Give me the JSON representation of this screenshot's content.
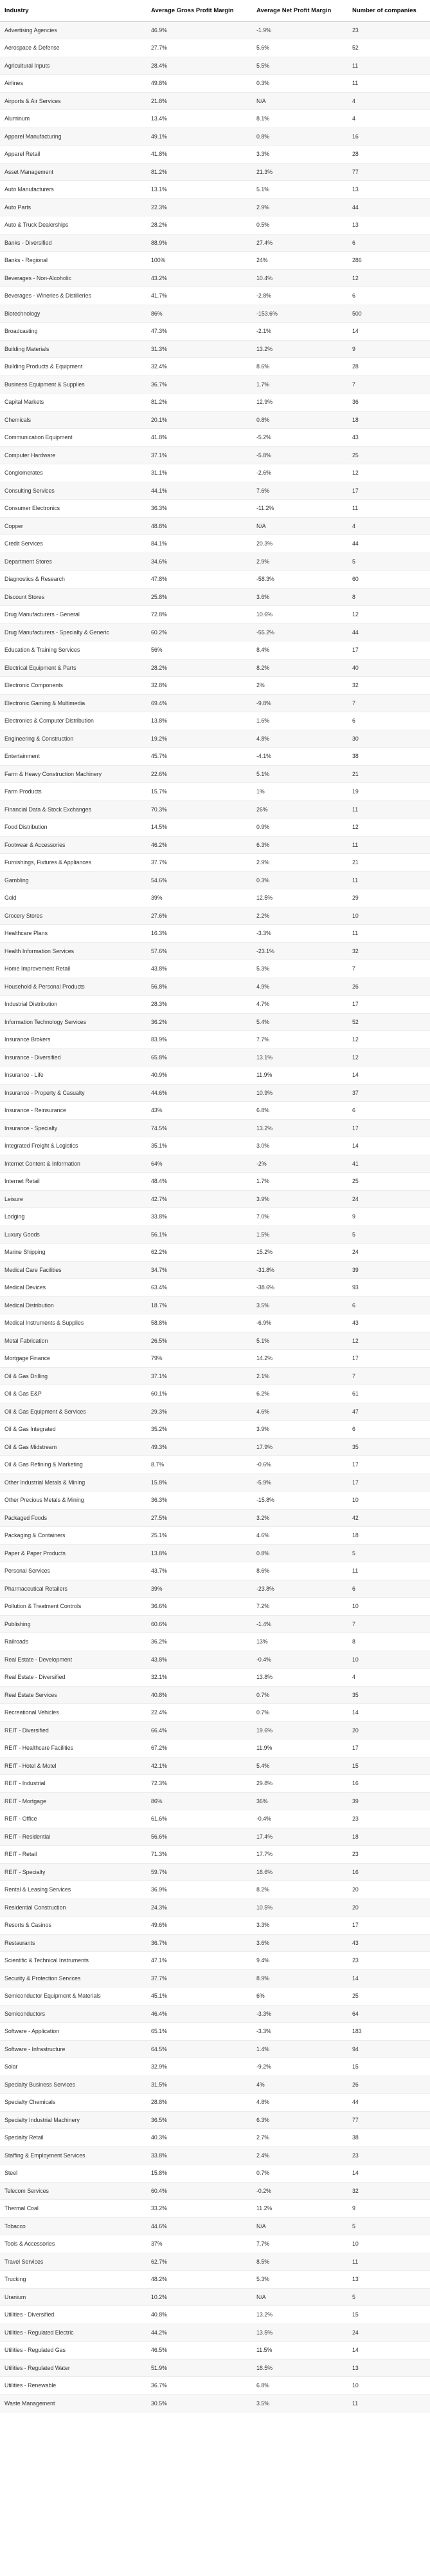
{
  "table": {
    "headers": [
      "Industry",
      "Average Gross Profit Margin",
      "Average Net Profit Margin",
      "Number of companies"
    ],
    "rows": [
      [
        "Advertising Agencies",
        "46.9%",
        "-1.9%",
        "23"
      ],
      [
        "Aerospace & Defense",
        "27.7%",
        "5.6%",
        "52"
      ],
      [
        "Agricultural Inputs",
        "28.4%",
        "5.5%",
        "11"
      ],
      [
        "Airlines",
        "49.8%",
        "0.3%",
        "11"
      ],
      [
        "Airports & Air Services",
        "21.8%",
        "N/A",
        "4"
      ],
      [
        "Aluminum",
        "13.4%",
        "8.1%",
        "4"
      ],
      [
        "Apparel Manufacturing",
        "49.1%",
        "0.8%",
        "16"
      ],
      [
        "Apparel Retail",
        "41.8%",
        "3.3%",
        "28"
      ],
      [
        "Asset Management",
        "81.2%",
        "21.3%",
        "77"
      ],
      [
        "Auto Manufacturers",
        "13.1%",
        "5.1%",
        "13"
      ],
      [
        "Auto Parts",
        "22.3%",
        "2.9%",
        "44"
      ],
      [
        "Auto & Truck Dealerships",
        "28.2%",
        "0.5%",
        "13"
      ],
      [
        "Banks - Diversified",
        "88.9%",
        "27.4%",
        "6"
      ],
      [
        "Banks - Regional",
        "100%",
        "24%",
        "286"
      ],
      [
        "Beverages - Non-Alcoholic",
        "43.2%",
        "10.4%",
        "12"
      ],
      [
        "Beverages - Wineries & Distilleries",
        "41.7%",
        "-2.8%",
        "6"
      ],
      [
        "Biotechnology",
        "86%",
        "-153.6%",
        "500"
      ],
      [
        "Broadcasting",
        "47.3%",
        "-2.1%",
        "14"
      ],
      [
        "Building Materials",
        "31.3%",
        "13.2%",
        "9"
      ],
      [
        "Building Products & Equipment",
        "32.4%",
        "8.6%",
        "28"
      ],
      [
        "Business Equipment & Supplies",
        "36.7%",
        "1.7%",
        "7"
      ],
      [
        "Capital Markets",
        "81.2%",
        "12.9%",
        "36"
      ],
      [
        "Chemicals",
        "20.1%",
        "0.8%",
        "18"
      ],
      [
        "Communication Equipment",
        "41.8%",
        "-5.2%",
        "43"
      ],
      [
        "Computer Hardware",
        "37.1%",
        "-5.8%",
        "25"
      ],
      [
        "Conglomerates",
        "31.1%",
        "-2.6%",
        "12"
      ],
      [
        "Consulting Services",
        "44.1%",
        "7.6%",
        "17"
      ],
      [
        "Consumer Electronics",
        "36.3%",
        "-11.2%",
        "11"
      ],
      [
        "Copper",
        "48.8%",
        "N/A",
        "4"
      ],
      [
        "Credit Services",
        "84.1%",
        "20.3%",
        "44"
      ],
      [
        "Department Stores",
        "34.6%",
        "2.9%",
        "5"
      ],
      [
        "Diagnostics & Research",
        "47.8%",
        "-58.3%",
        "60"
      ],
      [
        "Discount Stores",
        "25.8%",
        "3.6%",
        "8"
      ],
      [
        "Drug Manufacturers - General",
        "72.8%",
        "10.6%",
        "12"
      ],
      [
        "Drug Manufacturers - Specialty & Generic",
        "60.2%",
        "-55.2%",
        "44"
      ],
      [
        "Education & Training Services",
        "56%",
        "8.4%",
        "17"
      ],
      [
        "Electrical Equipment & Parts",
        "28.2%",
        "8.2%",
        "40"
      ],
      [
        "Electronic Components",
        "32.8%",
        "2%",
        "32"
      ],
      [
        "Electronic Gaming & Multimedia",
        "69.4%",
        "-9.8%",
        "7"
      ],
      [
        "Electronics & Computer Distribution",
        "13.8%",
        "1.6%",
        "6"
      ],
      [
        "Engineering & Construction",
        "19.2%",
        "4.8%",
        "30"
      ],
      [
        "Entertainment",
        "45.7%",
        "-4.1%",
        "38"
      ],
      [
        "Farm & Heavy Construction Machinery",
        "22.6%",
        "5.1%",
        "21"
      ],
      [
        "Farm Products",
        "15.7%",
        "1%",
        "19"
      ],
      [
        "Financial Data & Stock Exchanges",
        "70.3%",
        "26%",
        "11"
      ],
      [
        "Food Distribution",
        "14.5%",
        "0.9%",
        "12"
      ],
      [
        "Footwear & Accessories",
        "46.2%",
        "6.3%",
        "11"
      ],
      [
        "Furnishings, Fixtures & Appliances",
        "37.7%",
        "2.9%",
        "21"
      ],
      [
        "Gambling",
        "54.6%",
        "0.3%",
        "11"
      ],
      [
        "Gold",
        "39%",
        "12.5%",
        "29"
      ],
      [
        "Grocery Stores",
        "27.6%",
        "2.2%",
        "10"
      ],
      [
        "Healthcare Plans",
        "16.3%",
        "-3.3%",
        "11"
      ],
      [
        "Health Information Services",
        "57.6%",
        "-23.1%",
        "32"
      ],
      [
        "Home Improvement Retail",
        "43.8%",
        "5.3%",
        "7"
      ],
      [
        "Household & Personal Products",
        "56.8%",
        "4.9%",
        "26"
      ],
      [
        "Industrial Distribution",
        "28.3%",
        "4.7%",
        "17"
      ],
      [
        "Information Technology Services",
        "36.2%",
        "5.4%",
        "52"
      ],
      [
        "Insurance Brokers",
        "83.9%",
        "7.7%",
        "12"
      ],
      [
        "Insurance - Diversified",
        "65.8%",
        "13.1%",
        "12"
      ],
      [
        "Insurance - Life",
        "40.9%",
        "11.9%",
        "14"
      ],
      [
        "Insurance - Property & Casualty",
        "44.6%",
        "10.9%",
        "37"
      ],
      [
        "Insurance - Reinsurance",
        "43%",
        "6.8%",
        "6"
      ],
      [
        "Insurance - Specialty",
        "74.5%",
        "13.2%",
        "17"
      ],
      [
        "Integrated Freight & Logistics",
        "35.1%",
        "3.0%",
        "14"
      ],
      [
        "Internet Content & Information",
        "64%",
        "-2%",
        "41"
      ],
      [
        "Internet Retail",
        "48.4%",
        "1.7%",
        "25"
      ],
      [
        "Leisure",
        "42.7%",
        "3.9%",
        "24"
      ],
      [
        "Lodging",
        "33.8%",
        "7.0%",
        "9"
      ],
      [
        "Luxury Goods",
        "56.1%",
        "1.5%",
        "5"
      ],
      [
        "Marine Shipping",
        "62.2%",
        "15.2%",
        "24"
      ],
      [
        "Medical Care Facilities",
        "34.7%",
        "-31.8%",
        "39"
      ],
      [
        "Medical Devices",
        "63.4%",
        "-38.6%",
        "93"
      ],
      [
        "Medical Distribution",
        "18.7%",
        "3.5%",
        "6"
      ],
      [
        "Medical Instruments & Supplies",
        "58.8%",
        "-6.9%",
        "43"
      ],
      [
        "Metal Fabrication",
        "26.5%",
        "5.1%",
        "12"
      ],
      [
        "Mortgage Finance",
        "79%",
        "14.2%",
        "17"
      ],
      [
        "Oil & Gas Drilling",
        "37.1%",
        "2.1%",
        "7"
      ],
      [
        "Oil & Gas E&P",
        "60.1%",
        "6.2%",
        "61"
      ],
      [
        "Oil & Gas Equipment & Services",
        "29.3%",
        "4.6%",
        "47"
      ],
      [
        "Oil & Gas Integrated",
        "35.2%",
        "3.9%",
        "6"
      ],
      [
        "Oil & Gas Midstream",
        "49.3%",
        "17.9%",
        "35"
      ],
      [
        "Oil & Gas Refining & Marketing",
        "8.7%",
        "-0.6%",
        "17"
      ],
      [
        "Other Industrial Metals & Mining",
        "15.8%",
        "-5.9%",
        "17"
      ],
      [
        "Other Precious Metals & Mining",
        "36.3%",
        "-15.8%",
        "10"
      ],
      [
        "Packaged Foods",
        "27.5%",
        "3.2%",
        "42"
      ],
      [
        "Packaging & Containers",
        "25.1%",
        "4.6%",
        "18"
      ],
      [
        "Paper & Paper Products",
        "13.8%",
        "0.8%",
        "5"
      ],
      [
        "Personal Services",
        "43.7%",
        "8.6%",
        "11"
      ],
      [
        "Pharmaceutical Retailers",
        "39%",
        "-23.8%",
        "6"
      ],
      [
        "Pollution & Treatment Controls",
        "36.6%",
        "7.2%",
        "10"
      ],
      [
        "Publishing",
        "60.6%",
        "-1.4%",
        "7"
      ],
      [
        "Railroads",
        "36.2%",
        "13%",
        "8"
      ],
      [
        "Real Estate - Development",
        "43.8%",
        "-0.4%",
        "10"
      ],
      [
        "Real Estate - Diversified",
        "32.1%",
        "13.8%",
        "4"
      ],
      [
        "Real Estate Services",
        "40.8%",
        "0.7%",
        "35"
      ],
      [
        "Recreational Vehicles",
        "22.4%",
        "0.7%",
        "14"
      ],
      [
        "REIT - Diversified",
        "66.4%",
        "19.6%",
        "20"
      ],
      [
        "REIT - Healthcare Facilities",
        "67.2%",
        "11.9%",
        "17"
      ],
      [
        "REIT - Hotel & Motel",
        "42.1%",
        "5.4%",
        "15"
      ],
      [
        "REIT - Industrial",
        "72.3%",
        "29.8%",
        "16"
      ],
      [
        "REIT - Mortgage",
        "86%",
        "36%",
        "39"
      ],
      [
        "REIT - Office",
        "61.6%",
        "-0.4%",
        "23"
      ],
      [
        "REIT - Residential",
        "56.6%",
        "17.4%",
        "18"
      ],
      [
        "REIT - Retail",
        "71.3%",
        "17.7%",
        "23"
      ],
      [
        "REIT - Specialty",
        "59.7%",
        "18.6%",
        "16"
      ],
      [
        "Rental & Leasing Services",
        "36.9%",
        "8.2%",
        "20"
      ],
      [
        "Residential Construction",
        "24.3%",
        "10.5%",
        "20"
      ],
      [
        "Resorts & Casinos",
        "49.6%",
        "3.3%",
        "17"
      ],
      [
        "Restaurants",
        "36.7%",
        "3.6%",
        "43"
      ],
      [
        "Scientific & Technical Instruments",
        "47.1%",
        "9.4%",
        "23"
      ],
      [
        "Security & Protection Services",
        "37.7%",
        "8.9%",
        "14"
      ],
      [
        "Semiconductor Equipment & Materials",
        "45.1%",
        "6%",
        "25"
      ],
      [
        "Semiconductors",
        "46.4%",
        "-3.3%",
        "64"
      ],
      [
        "Software - Application",
        "65.1%",
        "-3.3%",
        "183"
      ],
      [
        "Software - Infrastructure",
        "64.5%",
        "1.4%",
        "94"
      ],
      [
        "Solar",
        "32.9%",
        "-9.2%",
        "15"
      ],
      [
        "Specialty Business Services",
        "31.5%",
        "4%",
        "26"
      ],
      [
        "Specialty Chemicals",
        "28.8%",
        "4.8%",
        "44"
      ],
      [
        "Specialty Industrial Machinery",
        "36.5%",
        "6.3%",
        "77"
      ],
      [
        "Specialty Retail",
        "40.3%",
        "2.7%",
        "38"
      ],
      [
        "Staffing & Employment Services",
        "33.8%",
        "2.4%",
        "23"
      ],
      [
        "Steel",
        "15.8%",
        "0.7%",
        "14"
      ],
      [
        "Telecom Services",
        "60.4%",
        "-0.2%",
        "32"
      ],
      [
        "Thermal Coal",
        "33.2%",
        "11.2%",
        "9"
      ],
      [
        "Tobacco",
        "44.6%",
        "N/A",
        "5"
      ],
      [
        "Tools & Accessories",
        "37%",
        "7.7%",
        "10"
      ],
      [
        "Travel Services",
        "62.7%",
        "8.5%",
        "11"
      ],
      [
        "Trucking",
        "48.2%",
        "5.3%",
        "13"
      ],
      [
        "Uranium",
        "10.2%",
        "N/A",
        "5"
      ],
      [
        "Utilities - Diversified",
        "40.8%",
        "13.2%",
        "15"
      ],
      [
        "Utilities - Regulated Electric",
        "44.2%",
        "13.5%",
        "24"
      ],
      [
        "Utilities - Regulated Gas",
        "46.5%",
        "11.5%",
        "14"
      ],
      [
        "Utilities - Regulated Water",
        "51.9%",
        "18.5%",
        "13"
      ],
      [
        "Utilities - Renewable",
        "36.7%",
        "6.8%",
        "10"
      ],
      [
        "Waste Management",
        "30.5%",
        "3.5%",
        "11"
      ]
    ]
  }
}
